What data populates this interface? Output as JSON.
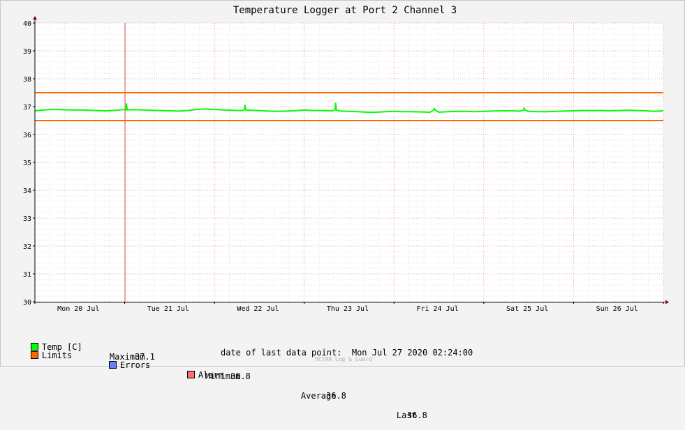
{
  "chart_data": {
    "type": "line",
    "title": "Temperature Logger at Port 2 Channel 3",
    "y_ticks": [
      "40",
      "39",
      "38",
      "37",
      "36",
      "35",
      "34",
      "33",
      "32",
      "31",
      "30"
    ],
    "ylim": [
      30,
      40
    ],
    "x_ticks": [
      "Mon 20 Jul",
      "Tue 21 Jul",
      "Wed 22 Jul",
      "Thu 23 Jul",
      "Fri 24 Jul",
      "Sat 25 Jul",
      "Sun 26 Jul"
    ],
    "grid": true,
    "series": [
      {
        "name": "Temp [C]",
        "color": "#00ff00",
        "x": [
          0,
          0.1,
          0.2,
          0.3,
          0.4,
          0.5,
          0.6,
          0.7,
          0.8,
          0.9,
          1.0,
          1.1,
          1.2,
          1.3,
          1.4,
          1.5,
          1.6,
          1.7,
          1.8,
          1.9,
          2.0,
          2.1,
          2.2,
          2.3,
          2.4,
          2.5,
          2.6,
          2.7,
          2.8,
          2.9,
          3.0,
          3.1,
          3.2,
          3.3,
          3.4,
          3.5,
          3.6,
          3.7,
          3.8,
          3.9,
          4.0,
          4.1,
          4.2,
          4.3,
          4.4,
          4.5,
          4.6,
          4.7,
          4.8,
          4.9,
          5.0,
          5.1,
          5.2,
          5.3,
          5.4,
          5.5,
          5.6,
          5.7,
          5.8,
          5.9,
          6.0,
          6.1,
          6.2,
          6.3,
          6.4,
          6.5,
          6.6,
          6.7,
          6.8,
          6.9,
          7.0
        ],
        "y": [
          36.85,
          36.88,
          36.9,
          36.89,
          36.88,
          36.88,
          36.87,
          36.86,
          36.85,
          36.87,
          36.9,
          36.89,
          36.88,
          36.87,
          36.86,
          36.85,
          36.84,
          36.86,
          36.9,
          36.92,
          36.9,
          36.88,
          36.87,
          36.86,
          36.87,
          36.86,
          36.84,
          36.83,
          36.84,
          36.85,
          36.88,
          36.86,
          36.86,
          36.85,
          36.84,
          36.83,
          36.82,
          36.8,
          36.8,
          36.82,
          36.83,
          36.82,
          36.82,
          36.81,
          36.8,
          36.8,
          36.82,
          36.83,
          36.83,
          36.82,
          36.83,
          36.84,
          36.85,
          36.85,
          36.84,
          36.83,
          36.82,
          36.82,
          36.83,
          36.84,
          36.85,
          36.86,
          36.86,
          36.86,
          36.85,
          36.86,
          36.87,
          36.86,
          36.85,
          36.83,
          36.85
        ]
      },
      {
        "name": "Limits",
        "color": "#ff6600",
        "values": [
          37.5,
          36.5
        ]
      },
      {
        "name": "Errors",
        "color": "#6a7ef5"
      },
      {
        "name": "Alarm",
        "color": "#ff6e6e"
      }
    ],
    "spikes": [
      {
        "x": 1.02,
        "y": 37.1
      },
      {
        "x": 2.34,
        "y": 37.05
      },
      {
        "x": 3.35,
        "y": 37.12
      },
      {
        "x": 4.45,
        "y": 36.93
      },
      {
        "x": 5.45,
        "y": 36.95
      }
    ],
    "alarm_marker_x": 1.0,
    "stats": {
      "maximum_label": "Maximum",
      "maximum": "37.1",
      "minimum_label": "Minimum",
      "minimum": "36.8",
      "average_label": "Average",
      "average": "36.8",
      "last_label": "Last",
      "last": "36.8"
    }
  },
  "footer": {
    "last_point_label": "date of last data point:",
    "last_point_value": "Mon Jul 27 2020 02:24:00",
    "watermark": "OCTAA Log & Guard"
  }
}
